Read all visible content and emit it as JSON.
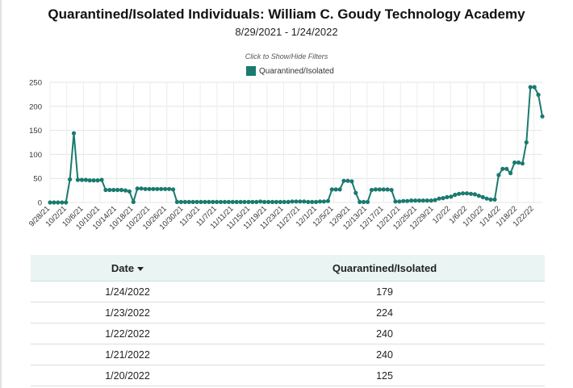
{
  "page": {
    "title": "Quarantined/Isolated Individuals: William C. Goudy Technology Academy",
    "subtitle": "8/29/2021 - 1/24/2022",
    "filter_toggle": "Click to Show/Hide Filters"
  },
  "colors": {
    "series": "#1a7a6e",
    "table_header_bg": "#e9f4f3"
  },
  "chart_data": {
    "type": "line",
    "legend_position": "top-center",
    "grid": true,
    "ylim": [
      0,
      250
    ],
    "y_ticks": [
      "0",
      "50",
      "100",
      "150",
      "200",
      "250"
    ],
    "x_tick_labels": [
      "9/28/21",
      "10/2/21",
      "10/6/21",
      "10/10/21",
      "10/14/21",
      "10/18/21",
      "10/22/21",
      "10/26/21",
      "10/30/21",
      "11/3/21",
      "11/7/21",
      "11/11/21",
      "11/15/21",
      "11/19/21",
      "11/23/21",
      "11/27/21",
      "12/1/21",
      "12/5/21",
      "12/9/21",
      "12/13/21",
      "12/17/21",
      "12/21/21",
      "12/25/21",
      "12/29/21",
      "1/2/22",
      "1/6/22",
      "1/10/22",
      "1/14/22",
      "1/18/22",
      "1/22/22"
    ],
    "x_start": "9/28/21",
    "x_end": "1/24/22",
    "series": [
      {
        "name": "Quarantined/Isolated",
        "values": [
          0,
          0,
          0,
          0,
          0,
          48,
          144,
          47,
          47,
          47,
          46,
          46,
          46,
          47,
          26,
          26,
          26,
          26,
          26,
          25,
          23,
          1,
          29,
          29,
          28,
          28,
          28,
          28,
          28,
          28,
          28,
          27,
          1,
          1,
          1,
          1,
          1,
          1,
          1,
          1,
          1,
          1,
          1,
          1,
          1,
          1,
          1,
          1,
          1,
          1,
          1,
          1,
          1,
          2,
          1,
          1,
          1,
          1,
          1,
          1,
          1,
          2,
          2,
          2,
          2,
          1,
          1,
          1,
          2,
          2,
          3,
          27,
          27,
          27,
          45,
          45,
          44,
          20,
          1,
          1,
          1,
          26,
          27,
          27,
          27,
          27,
          26,
          2,
          2,
          3,
          3,
          4,
          4,
          4,
          4,
          4,
          4,
          5,
          8,
          9,
          11,
          12,
          16,
          18,
          19,
          19,
          18,
          17,
          14,
          11,
          8,
          6,
          6,
          57,
          70,
          70,
          61,
          83,
          83,
          81,
          125,
          240,
          240,
          224,
          179
        ]
      }
    ]
  },
  "table": {
    "headers": {
      "date": "Date",
      "value": "Quarantined/Isolated"
    },
    "rows": [
      {
        "date": "1/24/2022",
        "value": "179"
      },
      {
        "date": "1/23/2022",
        "value": "224"
      },
      {
        "date": "1/22/2022",
        "value": "240"
      },
      {
        "date": "1/21/2022",
        "value": "240"
      },
      {
        "date": "1/20/2022",
        "value": "125"
      }
    ]
  }
}
